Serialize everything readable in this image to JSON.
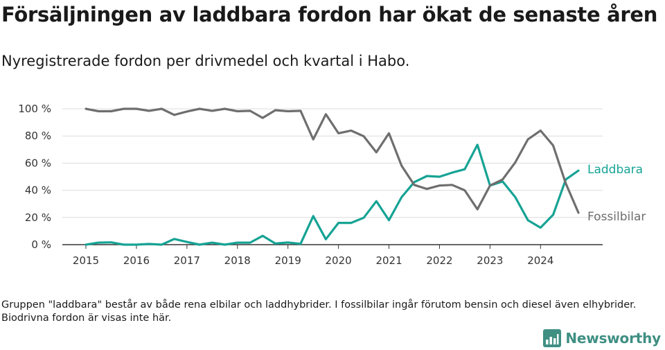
{
  "title": "Försäljningen av laddbara fordon har ökat de senaste åren",
  "subtitle": "Nyregistrerade fordon per drivmedel och kvartal i Habo.",
  "note": "Gruppen \"laddbara\" består av både rena elbilar och laddhybrider. I fossilbilar ingår förutom bensin och diesel även elhybrider. Biodrivna fordon är visas inte här.",
  "brand": {
    "name": "Newsworthy",
    "icon": "newsworthy-logo-icon",
    "color": "#3f8f83"
  },
  "chart_data": {
    "type": "line",
    "title": "Försäljningen av laddbara fordon har ökat de senaste åren",
    "xlabel": "",
    "ylabel": "",
    "ylim": [
      0,
      100
    ],
    "xlim": [
      2015,
      2024.75
    ],
    "x_ticks": [
      2015,
      2016,
      2017,
      2018,
      2019,
      2020,
      2021,
      2022,
      2023,
      2024
    ],
    "x_tick_labels": [
      "2015",
      "2016",
      "2017",
      "2018",
      "2019",
      "2020",
      "2021",
      "2022",
      "2023",
      "2024"
    ],
    "y_ticks": [
      0,
      20,
      40,
      60,
      80,
      100
    ],
    "y_tick_labels": [
      "0 %",
      "20 %",
      "40 %",
      "60 %",
      "80 %",
      "100 %"
    ],
    "grid": true,
    "x": [
      2015,
      2015.25,
      2015.5,
      2015.75,
      2016,
      2016.25,
      2016.5,
      2016.75,
      2017,
      2017.25,
      2017.5,
      2017.75,
      2018,
      2018.25,
      2018.5,
      2018.75,
      2019,
      2019.25,
      2019.5,
      2019.75,
      2020,
      2020.25,
      2020.5,
      2020.75,
      2021,
      2021.25,
      2021.5,
      2021.75,
      2022,
      2022.25,
      2022.5,
      2022.75,
      2023,
      2023.25,
      2023.5,
      2023.75,
      2024,
      2024.25,
      2024.5,
      2024.75
    ],
    "series": [
      {
        "name": "Laddbara",
        "color": "#16a394",
        "values": [
          0,
          1.5,
          1.7,
          0,
          0,
          0.5,
          0,
          4.2,
          2,
          0,
          1.5,
          0,
          1.5,
          1.5,
          6.5,
          0.8,
          1.6,
          0.6,
          21,
          4,
          16,
          16,
          19.8,
          32,
          18,
          35,
          46,
          50.5,
          50,
          53,
          55.5,
          73.5,
          43.5,
          46.5,
          35,
          18,
          12.5,
          22,
          48,
          54.5
        ]
      },
      {
        "name": "Fossilbilar",
        "color": "#6e6e6e",
        "values": [
          100,
          98.2,
          98.2,
          100,
          100,
          98.5,
          100,
          95.5,
          98,
          100,
          98.5,
          100,
          98.2,
          98.5,
          93.3,
          99,
          98.2,
          98.5,
          77.5,
          96,
          82,
          84,
          79.8,
          68,
          82,
          58,
          44,
          41,
          43.5,
          44,
          40,
          26,
          43.5,
          48,
          60.5,
          77.5,
          84,
          73,
          45,
          23.5
        ]
      }
    ]
  }
}
